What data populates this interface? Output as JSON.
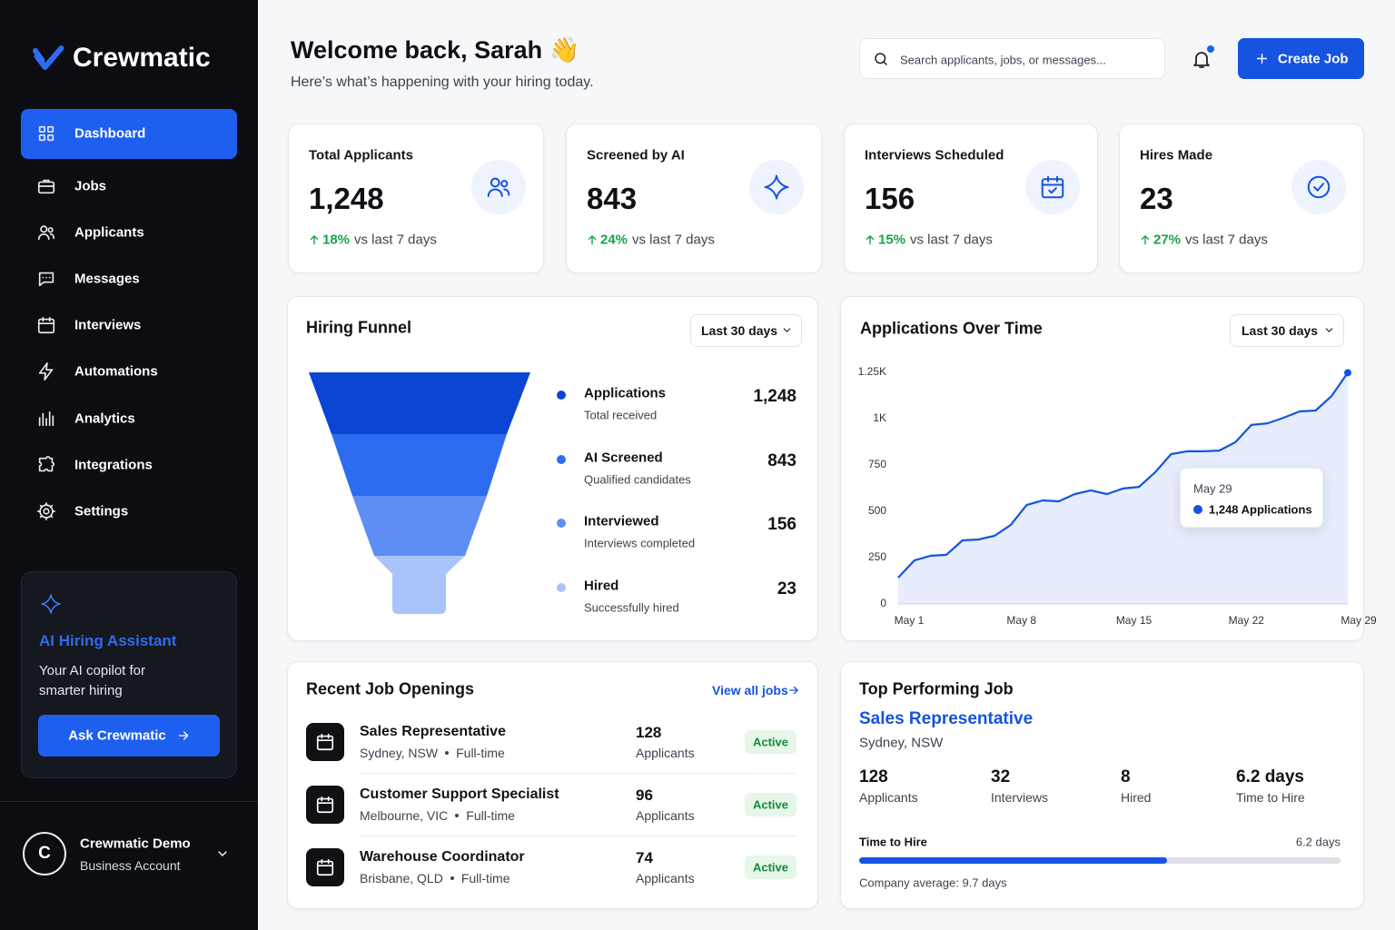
{
  "sidebar": {
    "brand": "Crewmatic",
    "nav": [
      "Dashboard",
      "Jobs",
      "Applicants",
      "Messages",
      "Interviews",
      "Automations",
      "Analytics",
      "Integrations",
      "Settings"
    ],
    "assistant": {
      "title": "AI Hiring Assistant",
      "description": "Your AI copilot for smarter hiring",
      "button": "Ask Crewmatic"
    },
    "account": {
      "initial": "C",
      "name": "Crewmatic Demo",
      "plan": "Business Account"
    }
  },
  "header": {
    "title": "Welcome back, Sarah 👋",
    "subtitle": "Here’s what’s happening with your hiring today.",
    "search_placeholder": "Search applicants, jobs, or messages...",
    "button": "Create Job"
  },
  "stats": [
    {
      "label": "Total Applicants",
      "value": "1,248",
      "change": "18%",
      "comparison": "vs last 7 days"
    },
    {
      "label": "Screened by AI",
      "value": "843",
      "change": "24%",
      "comparison": "vs last 7 days"
    },
    {
      "label": "Interviews Scheduled",
      "value": "156",
      "change": "15%",
      "comparison": "vs last 7 days"
    },
    {
      "label": "Hires Made",
      "value": "23",
      "change": "27%",
      "comparison": "vs last 7 days"
    }
  ],
  "funnel": {
    "title": "Hiring Funnel",
    "filter": "Last 30 days",
    "stages": [
      {
        "name": "Applications",
        "description": "Total received",
        "value": "1,248",
        "color": "#0a46d3"
      },
      {
        "name": "AI Screened",
        "description": "Qualified candidates",
        "value": "843",
        "color": "#2d6cf0"
      },
      {
        "name": "Interviewed",
        "description": "Interviews completed",
        "value": "156",
        "color": "#5e8ef4"
      },
      {
        "name": "Hired",
        "description": "Successfully hired",
        "value": "23",
        "color": "#a9c4fa"
      }
    ]
  },
  "chart_data": {
    "type": "line",
    "title": "Applications Over Time",
    "filter": "Last 30 days",
    "categories": [
      "May 1",
      null,
      null,
      null,
      null,
      null,
      null,
      "May 8",
      null,
      null,
      null,
      null,
      null,
      null,
      "May 15",
      null,
      null,
      null,
      null,
      null,
      null,
      "May 22",
      null,
      null,
      null,
      null,
      null,
      null,
      "May 29"
    ],
    "values": [
      142,
      235,
      260,
      265,
      343,
      348,
      368,
      426,
      534,
      559,
      554,
      593,
      613,
      593,
      623,
      632,
      711,
      809,
      824,
      824,
      828,
      873,
      966,
      975,
      1005,
      1039,
      1044,
      1123,
      1248
    ],
    "color": "#1553e0",
    "ylim": [
      0,
      1250
    ],
    "yticks": [
      0,
      250,
      500,
      750,
      {
        "value": 1000,
        "label": "1K"
      },
      {
        "value": 1250,
        "label": "1.25K"
      }
    ],
    "tooltip": {
      "title": "May 29",
      "label": "1,248 Applications"
    }
  },
  "recent_jobs": {
    "title": "Recent Job Openings",
    "link": "View all jobs",
    "rows": [
      {
        "title": "Sales Representative",
        "location": "Sydney, NSW",
        "type": "Full-time",
        "applicants": "128",
        "applicants_label": "Applicants",
        "status": "Active"
      },
      {
        "title": "Customer Support Specialist",
        "location": "Melbourne, VIC",
        "type": "Full-time",
        "applicants": "96",
        "applicants_label": "Applicants",
        "status": "Active"
      },
      {
        "title": "Warehouse Coordinator",
        "location": "Brisbane, QLD",
        "type": "Full-time",
        "applicants": "74",
        "applicants_label": "Applicants",
        "status": "Active"
      }
    ]
  },
  "top_job": {
    "title": "Top Performing Job",
    "job": "Sales Representative",
    "location": "Sydney, NSW",
    "metrics": [
      {
        "value": "128",
        "label": "Applicants"
      },
      {
        "value": "32",
        "label": "Interviews"
      },
      {
        "value": "8",
        "label": "Hired"
      },
      {
        "value": "6.2 days",
        "label": "Time to Hire"
      }
    ],
    "progress": {
      "label": "Time to Hire",
      "value": 6.2,
      "value_label": "6.2 days",
      "max": 9.7,
      "max_label": "Company average: 9.7 days"
    }
  }
}
